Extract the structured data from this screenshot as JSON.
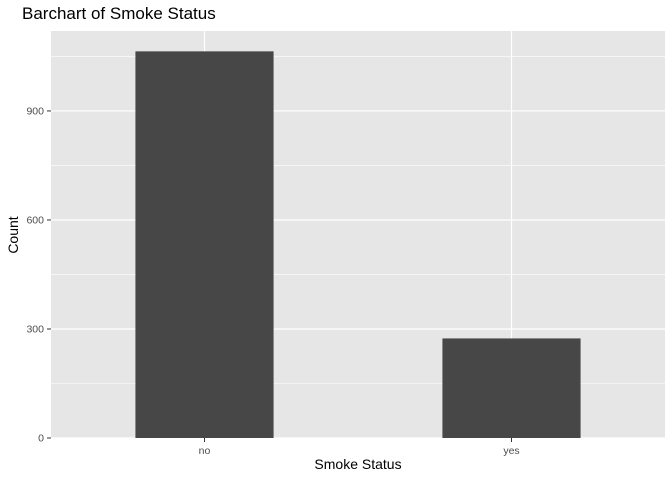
{
  "chart_data": {
    "type": "bar",
    "title": "Barchart of Smoke Status",
    "xlabel": "Smoke Status",
    "ylabel": "Count",
    "categories": [
      "no",
      "yes"
    ],
    "values": [
      1064,
      274
    ],
    "ylim": [
      0,
      1120
    ],
    "yticks": [
      0,
      300,
      600,
      900
    ],
    "grid": true,
    "colors": {
      "bar": "#474747",
      "panel": "#e6e6e6",
      "grid": "#ffffff",
      "tick_text": "#4d4d4d"
    }
  }
}
